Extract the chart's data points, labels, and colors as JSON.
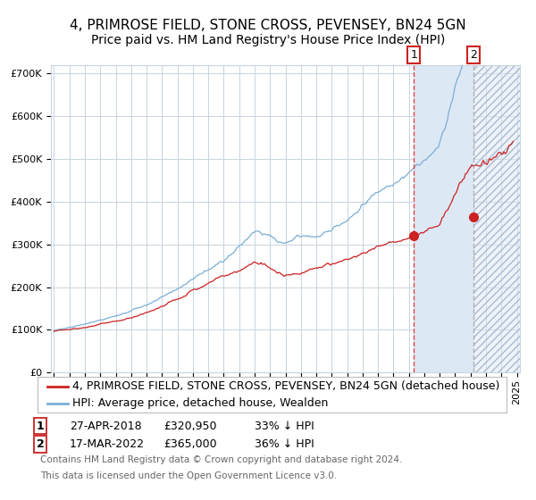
{
  "title": "4, PRIMROSE FIELD, STONE CROSS, PEVENSEY, BN24 5GN",
  "subtitle": "Price paid vs. HM Land Registry's House Price Index (HPI)",
  "legend_label_red": "4, PRIMROSE FIELD, STONE CROSS, PEVENSEY, BN24 5GN (detached house)",
  "legend_label_blue": "HPI: Average price, detached house, Wealden",
  "footnote1": "Contains HM Land Registry data © Crown copyright and database right 2024.",
  "footnote2": "This data is licensed under the Open Government Licence v3.0.",
  "sale1_date": "27-APR-2018",
  "sale1_price": 320950,
  "sale1_price_str": "£320,950",
  "sale1_hpi_diff": "33% ↓ HPI",
  "sale2_date": "17-MAR-2022",
  "sale2_price": 365000,
  "sale2_price_str": "£365,000",
  "sale2_hpi_diff": "36% ↓ HPI",
  "sale1_year": 2018.32,
  "sale2_year": 2022.21,
  "ylim": [
    0,
    720000
  ],
  "xlim_start": 1995,
  "xlim_end": 2025,
  "background_color": "#ffffff",
  "grid_color": "#c8d4e0",
  "red_line_color": "#cc2222",
  "blue_line_color": "#7aaed6",
  "shade_color": "#dde8f5",
  "title_fontsize": 11,
  "subtitle_fontsize": 10,
  "tick_fontsize": 8,
  "legend_fontsize": 9,
  "table_fontsize": 9,
  "footnote_fontsize": 7.5
}
